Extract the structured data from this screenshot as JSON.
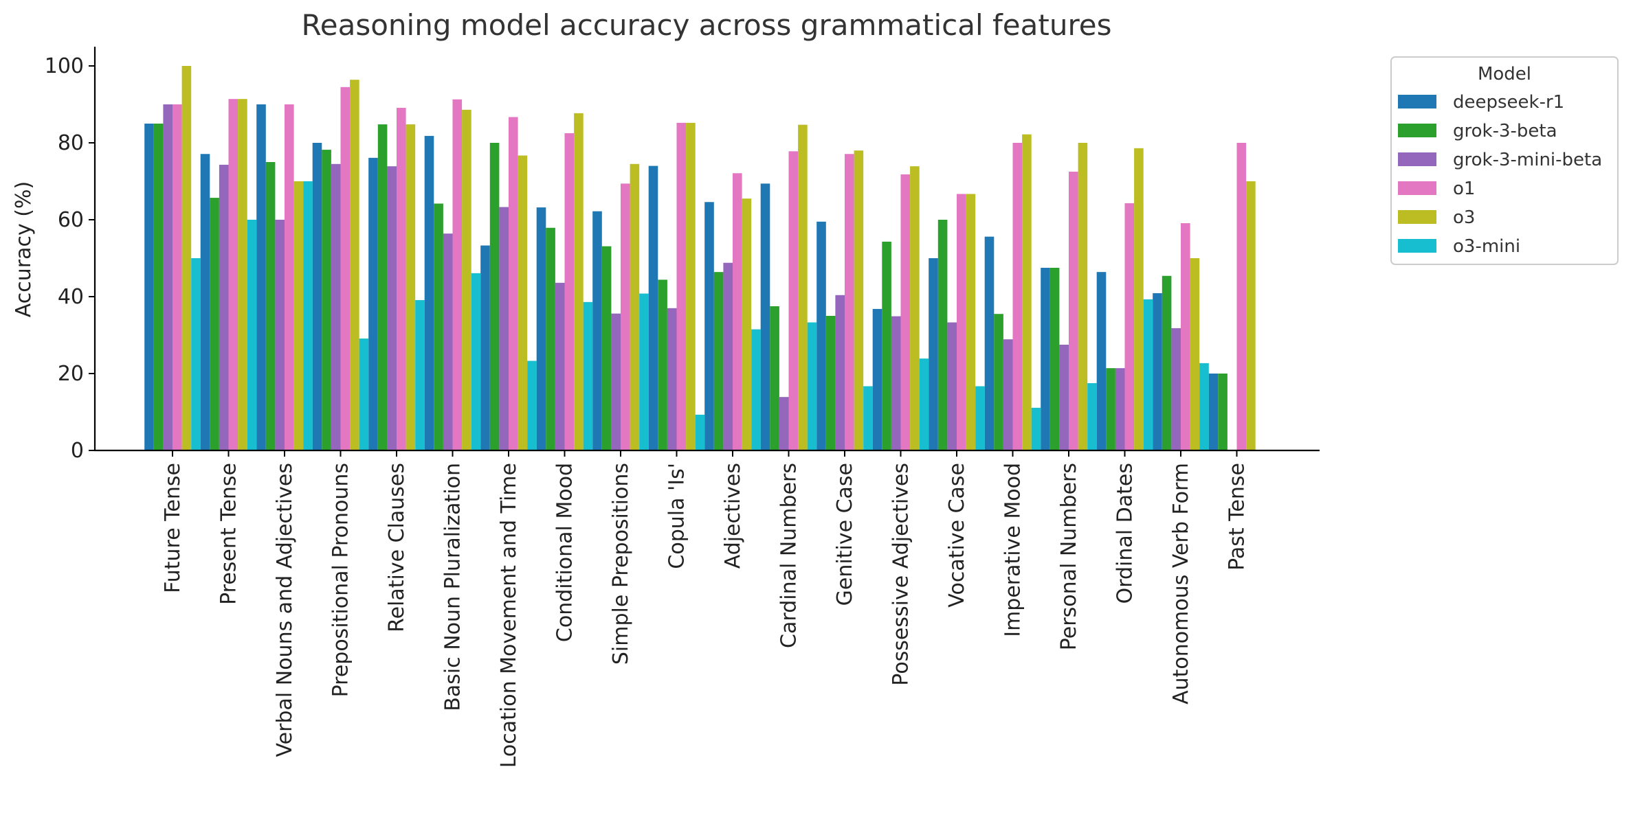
{
  "chart_data": {
    "type": "bar",
    "title": "Reasoning model accuracy across grammatical features",
    "xlabel": "",
    "ylabel": "Accuracy (%)",
    "ylim": [
      0,
      105
    ],
    "yticks": [
      0,
      20,
      40,
      60,
      80,
      100
    ],
    "grid": false,
    "legend": {
      "title": "Model",
      "placement": "outside right, top"
    },
    "categories": [
      "Future Tense",
      "Present Tense",
      "Verbal Nouns and Adjectives",
      "Prepositional Pronouns",
      "Relative Clauses",
      "Basic Noun Pluralization",
      "Location Movement and Time",
      "Conditional Mood",
      "Simple Prepositions",
      "Copula 'Is'",
      "Adjectives",
      "Cardinal Numbers",
      "Genitive Case",
      "Possessive Adjectives",
      "Vocative Case",
      "Imperative Mood",
      "Personal Numbers",
      "Ordinal Dates",
      "Autonomous Verb Form",
      "Past Tense"
    ],
    "series": [
      {
        "name": "deepseek-r1",
        "color": "#1f77b4",
        "values": [
          85,
          77.1,
          90,
          80,
          76.1,
          81.8,
          53.3,
          63.2,
          62.2,
          74,
          64.6,
          69.4,
          59.5,
          36.8,
          50,
          55.6,
          47.5,
          46.4,
          40.9,
          20
        ]
      },
      {
        "name": "grok-3-beta",
        "color": "#2ca02c",
        "values": [
          85,
          65.7,
          75,
          78.2,
          84.8,
          64.2,
          80,
          57.9,
          53.1,
          44.4,
          46.4,
          37.5,
          35,
          54.3,
          60,
          35.5,
          47.5,
          21.4,
          45.4,
          20
        ]
      },
      {
        "name": "grok-3-mini-beta",
        "color": "#9467bd",
        "values": [
          90,
          74.3,
          60,
          74.5,
          73.9,
          56.4,
          63.3,
          43.6,
          35.6,
          37,
          48.8,
          13.9,
          40.4,
          34.9,
          33.3,
          28.9,
          27.5,
          21.4,
          31.8,
          0
        ]
      },
      {
        "name": "o1",
        "color": "#e377c2",
        "values": [
          90,
          91.4,
          90,
          94.5,
          89.1,
          91.3,
          86.7,
          82.5,
          69.4,
          85.2,
          72.1,
          77.8,
          77.1,
          71.8,
          66.7,
          80,
          72.5,
          64.3,
          59.1,
          80
        ]
      },
      {
        "name": "o3",
        "color": "#bcbd22",
        "values": [
          100,
          91.4,
          70,
          96.4,
          84.8,
          88.6,
          76.7,
          87.7,
          74.5,
          85.2,
          65.5,
          84.7,
          78,
          73.9,
          66.7,
          82.2,
          80,
          78.6,
          50,
          70
        ]
      },
      {
        "name": "o3-mini",
        "color": "#17becf",
        "values": [
          50,
          60,
          70,
          29.1,
          39.1,
          46.1,
          23.3,
          38.6,
          40.8,
          9.3,
          31.5,
          33.3,
          16.7,
          23.9,
          16.7,
          11.1,
          17.5,
          39.3,
          22.7,
          0
        ]
      }
    ]
  }
}
